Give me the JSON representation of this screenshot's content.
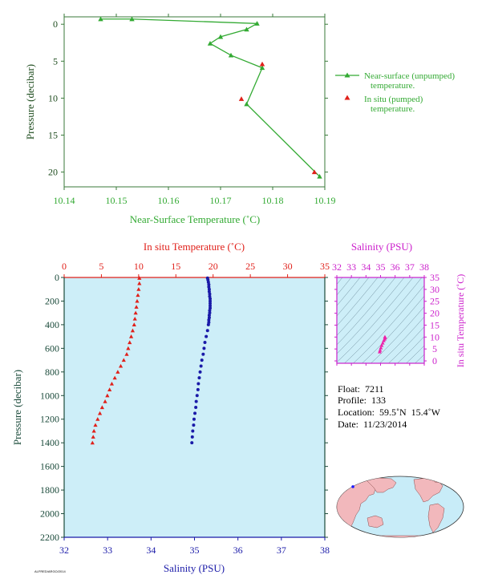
{
  "chart_data": [
    {
      "type": "line",
      "xlabel": "Near-Surface Temperature (˚C)",
      "ylabel": "Pressure (decibar)",
      "xlim": [
        10.14,
        10.19
      ],
      "ylim": [
        22,
        -1
      ],
      "xticks": [
        "10.14",
        "10.15",
        "10.16",
        "10.17",
        "10.18",
        "10.19"
      ],
      "yticks": [
        "0",
        "5",
        "10",
        "15",
        "20"
      ],
      "legend_position": "right",
      "series": [
        {
          "name": "Near-surface (unpumped) temperature.",
          "color": "#33aa33",
          "marker": "triangle",
          "points": [
            [
              10.147,
              -0.7
            ],
            [
              10.153,
              -0.7
            ],
            [
              10.177,
              -0.1
            ],
            [
              10.175,
              0.7
            ],
            [
              10.17,
              1.7
            ],
            [
              10.168,
              2.6
            ],
            [
              10.172,
              4.2
            ],
            [
              10.178,
              5.9
            ],
            [
              10.175,
              10.8
            ],
            [
              10.189,
              20.6
            ]
          ]
        },
        {
          "name": "In situ (pumped) temperature.",
          "color": "#e0201a",
          "marker": "triangle",
          "points": [
            [
              10.178,
              5.4
            ],
            [
              10.174,
              10.1
            ],
            [
              10.188,
              20.0
            ]
          ]
        }
      ]
    },
    {
      "type": "scatter",
      "xlabel": "Salinity (PSU)",
      "ylabel": "Pressure (decibar)",
      "x2label": "In situ Temperature (˚C)",
      "xlim": [
        32,
        38
      ],
      "x2lim": [
        0,
        35
      ],
      "ylim": [
        2200,
        0
      ],
      "xticks": [
        "32",
        "33",
        "34",
        "35",
        "36",
        "37",
        "38"
      ],
      "x2ticks": [
        "0",
        "5",
        "10",
        "15",
        "20",
        "25",
        "30",
        "35"
      ],
      "yticks": [
        "0",
        "200",
        "400",
        "600",
        "800",
        "1000",
        "1200",
        "1400",
        "1600",
        "1800",
        "2000",
        "2200"
      ],
      "series": [
        {
          "name": "In situ Temperature",
          "color": "#e0201a",
          "marker": "triangle",
          "points": [
            [
              10.1,
              5
            ],
            [
              10.1,
              50
            ],
            [
              10.0,
              100
            ],
            [
              9.9,
              150
            ],
            [
              9.8,
              200
            ],
            [
              9.7,
              250
            ],
            [
              9.6,
              300
            ],
            [
              9.5,
              350
            ],
            [
              9.4,
              400
            ],
            [
              9.2,
              450
            ],
            [
              9.0,
              500
            ],
            [
              8.8,
              550
            ],
            [
              8.6,
              600
            ],
            [
              8.4,
              650
            ],
            [
              8.0,
              700
            ],
            [
              7.6,
              750
            ],
            [
              7.2,
              800
            ],
            [
              6.8,
              850
            ],
            [
              6.4,
              900
            ],
            [
              6.1,
              950
            ],
            [
              5.8,
              1000
            ],
            [
              5.5,
              1050
            ],
            [
              5.1,
              1100
            ],
            [
              4.8,
              1150
            ],
            [
              4.5,
              1200
            ],
            [
              4.2,
              1250
            ],
            [
              4.0,
              1300
            ],
            [
              3.9,
              1350
            ],
            [
              3.8,
              1400
            ]
          ]
        },
        {
          "name": "Salinity",
          "color": "#1a1aa8",
          "marker": "circle",
          "points": [
            [
              35.3,
              5
            ],
            [
              35.31,
              20
            ],
            [
              35.32,
              40
            ],
            [
              35.33,
              60
            ],
            [
              35.33,
              80
            ],
            [
              35.34,
              100
            ],
            [
              35.34,
              120
            ],
            [
              35.35,
              140
            ],
            [
              35.35,
              160
            ],
            [
              35.36,
              180
            ],
            [
              35.36,
              200
            ],
            [
              35.36,
              220
            ],
            [
              35.36,
              240
            ],
            [
              35.36,
              260
            ],
            [
              35.35,
              280
            ],
            [
              35.35,
              300
            ],
            [
              35.34,
              320
            ],
            [
              35.34,
              340
            ],
            [
              35.33,
              360
            ],
            [
              35.33,
              380
            ],
            [
              35.32,
              400
            ],
            [
              35.3,
              450
            ],
            [
              35.27,
              500
            ],
            [
              35.24,
              550
            ],
            [
              35.22,
              600
            ],
            [
              35.2,
              650
            ],
            [
              35.17,
              700
            ],
            [
              35.15,
              750
            ],
            [
              35.13,
              800
            ],
            [
              35.11,
              850
            ],
            [
              35.09,
              900
            ],
            [
              35.08,
              950
            ],
            [
              35.06,
              1000
            ],
            [
              35.04,
              1050
            ],
            [
              35.03,
              1100
            ],
            [
              35.01,
              1150
            ],
            [
              34.99,
              1200
            ],
            [
              34.98,
              1250
            ],
            [
              34.96,
              1300
            ],
            [
              34.95,
              1350
            ],
            [
              34.94,
              1400
            ]
          ]
        }
      ]
    },
    {
      "type": "scatter",
      "title": "Salinity (PSU)",
      "ylabel": "In situ Temperature (˚C)",
      "xlim": [
        32,
        38
      ],
      "ylim": [
        -1,
        35
      ],
      "xticks": [
        "32",
        "33",
        "34",
        "35",
        "36",
        "37",
        "38"
      ],
      "yticks": [
        "0",
        "5",
        "10",
        "15",
        "20",
        "25",
        "30",
        "35"
      ],
      "series": [
        {
          "name": "T-S",
          "color": "#ee22aa",
          "marker": "triangle",
          "points": [
            [
              35.3,
              10.1
            ],
            [
              35.32,
              9.8
            ],
            [
              35.28,
              9.2
            ],
            [
              35.22,
              8.5
            ],
            [
              35.15,
              7.5
            ],
            [
              35.08,
              6.5
            ],
            [
              35.02,
              5.5
            ],
            [
              34.97,
              4.5
            ],
            [
              34.94,
              3.8
            ]
          ]
        }
      ]
    }
  ],
  "float_info": {
    "float": "Float:  7211",
    "profile": "Profile:  133",
    "location": "Location:  59.5˚N  15.4˚W",
    "date": "Date:  11/23/2014"
  },
  "map_marker": {
    "lat": 59.5,
    "lon": -15.4
  },
  "footer_text": "ALFRED/ARGO/2014"
}
